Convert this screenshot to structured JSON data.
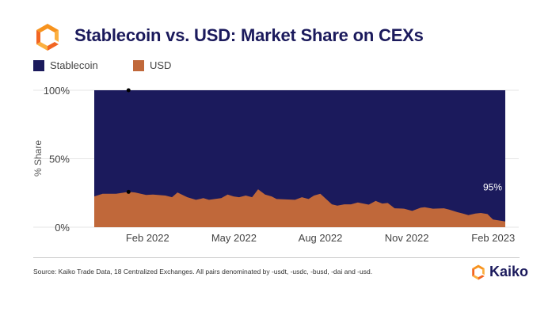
{
  "header": {
    "title": "Stablecoin vs. USD: Market Share on CEXs"
  },
  "footer": {
    "source": "Source: Kaiko Trade Data, 18 Centralized Exchanges. All pairs denominated by -usdt, -usdc, -busd, -dai and -usd.",
    "brand": "Kaiko"
  },
  "colors": {
    "stablecoin": "#1b1a5c",
    "usd": "#c0683a",
    "brand_orange": "#f7931e"
  },
  "chart_data": {
    "type": "area",
    "stacked": true,
    "title": "Stablecoin vs. USD: Market Share on CEXs",
    "ylabel": "% Share",
    "xlabel": "",
    "ylim": [
      0,
      100
    ],
    "xlim": [
      -0.85,
      13.42
    ],
    "x_unit": "months since Jan 2022",
    "yticks": [
      {
        "v": 0,
        "label": "0%"
      },
      {
        "v": 50,
        "label": "50%"
      },
      {
        "v": 100,
        "label": "100%"
      }
    ],
    "xticks": [
      {
        "v": 1,
        "label": "Feb 2022"
      },
      {
        "v": 4,
        "label": "May 2022"
      },
      {
        "v": 7,
        "label": "Aug 2022"
      },
      {
        "v": 10,
        "label": "Nov 2022"
      },
      {
        "v": 13,
        "label": "Feb 2023"
      }
    ],
    "legend": {
      "placement": "top-left",
      "entries": [
        "Stablecoin",
        "USD"
      ]
    },
    "annotation": {
      "text": "95%",
      "x": 13.2,
      "y": 27
    },
    "marker_x": 0.34,
    "series": [
      {
        "name": "Stablecoin",
        "note": "fills remainder to 100%"
      },
      {
        "name": "USD",
        "x": [
          -0.85,
          -0.56,
          -0.09,
          0.34,
          0.57,
          0.95,
          1.19,
          1.62,
          1.85,
          2.04,
          2.38,
          2.68,
          2.94,
          3.13,
          3.56,
          3.78,
          3.99,
          4.18,
          4.41,
          4.63,
          4.84,
          5.08,
          5.31,
          5.48,
          6.12,
          6.36,
          6.59,
          6.78,
          7.0,
          7.4,
          7.59,
          7.83,
          8.06,
          8.3,
          8.68,
          8.92,
          9.15,
          9.34,
          9.58,
          9.91,
          10.19,
          10.48,
          10.62,
          10.91,
          11.29,
          11.47,
          11.76,
          11.95,
          12.14,
          12.38,
          12.57,
          12.8,
          12.99,
          13.42
        ],
        "values": [
          22.5,
          24.4,
          24.4,
          25.8,
          25.4,
          23.5,
          23.8,
          23.1,
          21.9,
          25.4,
          21.9,
          20.0,
          21.2,
          20.0,
          21.2,
          23.8,
          22.5,
          21.9,
          23.1,
          21.9,
          27.7,
          23.8,
          22.5,
          20.6,
          20.0,
          21.9,
          20.6,
          23.1,
          24.4,
          16.7,
          15.8,
          16.7,
          16.7,
          18.1,
          16.5,
          19.2,
          17.3,
          17.7,
          13.8,
          13.5,
          11.9,
          14.2,
          14.6,
          13.5,
          13.8,
          12.9,
          11.0,
          10.0,
          8.8,
          10.0,
          10.4,
          9.6,
          5.6,
          4.2
        ]
      }
    ]
  }
}
